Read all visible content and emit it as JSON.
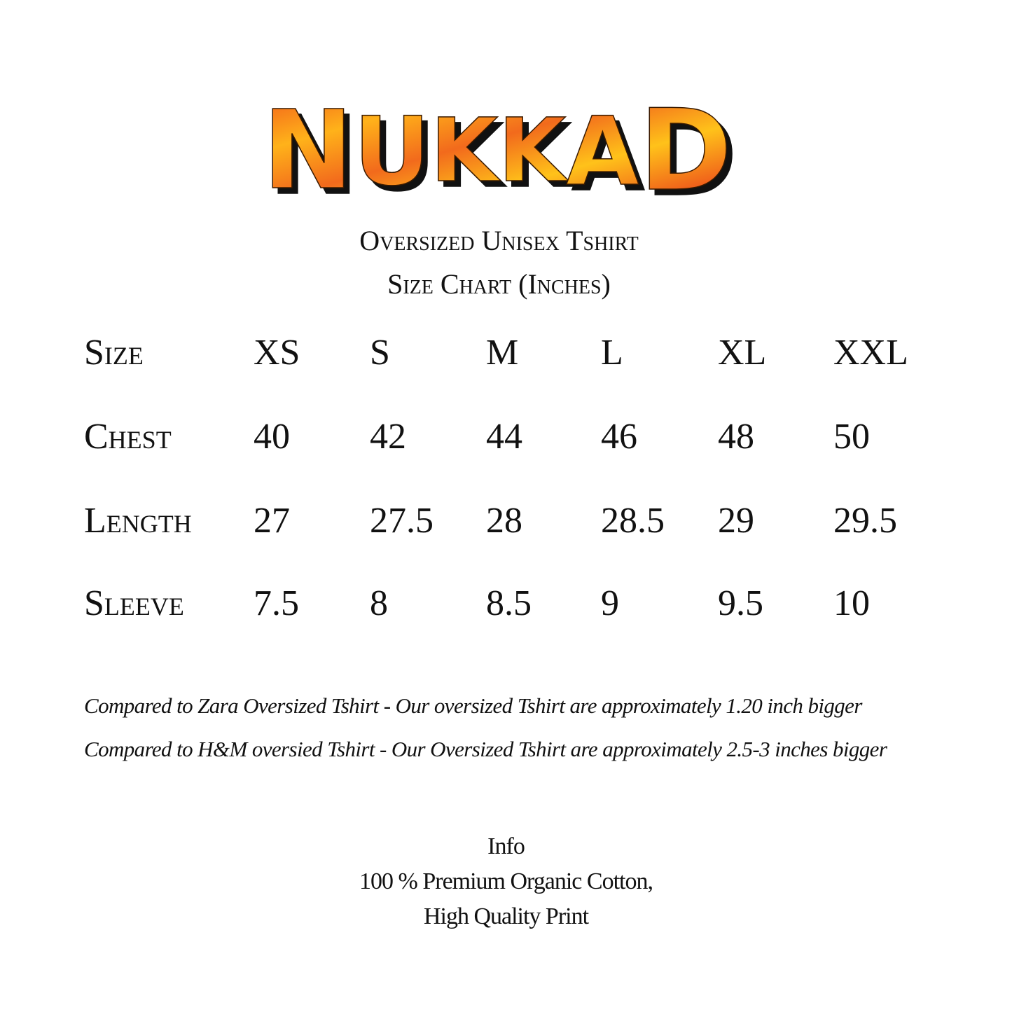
{
  "logo": {
    "text": "NUKKAD",
    "colors": {
      "fill_light": "#ffc21a",
      "fill_dark": "#f0501a",
      "shadow": "#111111"
    }
  },
  "title": {
    "line1": "Oversized Unisex Tshirt",
    "line2": "Size Chart (Inches)"
  },
  "table": {
    "header": {
      "label": "Size",
      "sizes": [
        "XS",
        "S",
        "M",
        "L",
        "XL",
        "XXL"
      ]
    },
    "rows": [
      {
        "label": "Chest",
        "values": [
          "40",
          "42",
          "44",
          "46",
          "48",
          "50"
        ]
      },
      {
        "label": "Length",
        "values": [
          "27",
          "27.5",
          "28",
          "28.5",
          "29",
          "29.5"
        ]
      },
      {
        "label": "Sleeve",
        "values": [
          "7.5",
          "8",
          "8.5",
          "9",
          "9.5",
          "10"
        ]
      }
    ]
  },
  "notes": [
    "Compared to Zara Oversized Tshirt - Our oversized Tshirt are approximately 1.20 inch bigger",
    "Compared to H&M oversied Tshirt - Our Oversized Tshirt are approximately 2.5-3 inches bigger"
  ],
  "info": {
    "heading": "Info",
    "line1": "100 % Premium Organic Cotton,",
    "line2": "High Quality Print"
  }
}
